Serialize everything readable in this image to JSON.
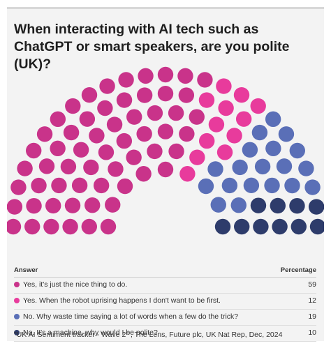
{
  "title": "When interacting with AI tech such as ChatGPT or smart speakers, are you polite (UK)?",
  "legend": {
    "header_answer": "Answer",
    "header_value": "Percentage"
  },
  "source": "\"UK AI Sentiment tracker - Wave 2\" , The Lens, Future plc, UK Nat Rep, Dec, 2024",
  "chart_data": {
    "type": "parliament",
    "total_seats": 100,
    "categories": [
      "Yes, it's just the nice thing to do.",
      "Yes. When the robot uprising happens I don't want to be first.",
      "No. Why waste time saying a lot of words when a few do the trick?",
      "No. It's a machine, why would I be polite?"
    ],
    "series": [
      {
        "name": "Yes, it's just the nice thing to do.",
        "value": 59,
        "color": "#c9338a"
      },
      {
        "name": "Yes. When the robot uprising happens I don't want to be first.",
        "value": 12,
        "color": "#e83b9c"
      },
      {
        "name": "No. Why waste time saying a lot of words when a few do the trick?",
        "value": 19,
        "color": "#5a6fb7"
      },
      {
        "name": "No. It's a machine, why would I be polite?",
        "value": 10,
        "color": "#2e3c6b"
      }
    ]
  }
}
